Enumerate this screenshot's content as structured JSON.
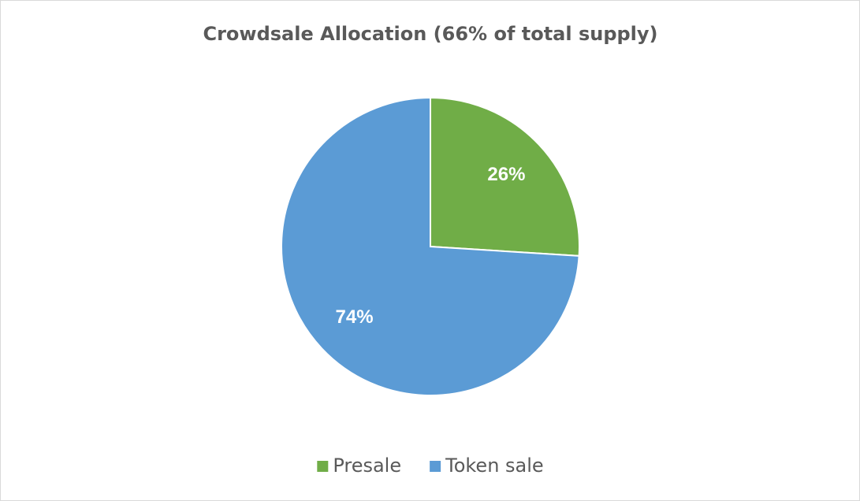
{
  "chart_data": {
    "type": "pie",
    "title": "Crowdsale Allocation (66% of total supply)",
    "categories": [
      "Presale",
      "Token sale"
    ],
    "values": [
      26,
      74
    ],
    "value_labels": [
      "26%",
      "74%"
    ],
    "colors": [
      "#70ad47",
      "#5b9bd5"
    ],
    "legend": "bottom"
  }
}
